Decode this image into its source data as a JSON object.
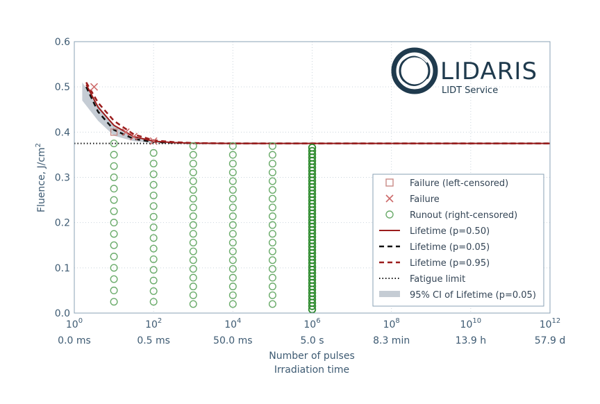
{
  "chart_data": {
    "type": "scatter",
    "xscale": "log10",
    "xlim_exp": [
      0,
      12
    ],
    "ylim": [
      0.0,
      0.6
    ],
    "yticks": [
      "0.0",
      "0.1",
      "0.2",
      "0.3",
      "0.4",
      "0.5",
      "0.6"
    ],
    "ytick_values": [
      0.0,
      0.1,
      0.2,
      0.3,
      0.4,
      0.5,
      0.6
    ],
    "xticks": [
      {
        "base": "10",
        "exp": "0",
        "value_exp": 0,
        "time": "0.0 ms"
      },
      {
        "base": "10",
        "exp": "2",
        "value_exp": 2,
        "time": "0.5 ms"
      },
      {
        "base": "10",
        "exp": "4",
        "value_exp": 4,
        "time": "50.0 ms"
      },
      {
        "base": "10",
        "exp": "6",
        "value_exp": 6,
        "time": "5.0 s"
      },
      {
        "base": "10",
        "exp": "8",
        "value_exp": 8,
        "time": "8.3 min"
      },
      {
        "base": "10",
        "exp": "10",
        "value_exp": 10,
        "time": "13.9 h"
      },
      {
        "base": "10",
        "exp": "12",
        "value_exp": 12,
        "time": "57.9 d"
      }
    ],
    "xlabel_line1": "Number of pulses",
    "xlabel_line2": "Irradiation time",
    "ylabel_main": "Fluence, J/cm",
    "ylabel_sup": "2",
    "grid": true,
    "legend_position": "lower-right",
    "fatigue_limit": 0.375,
    "series": [
      {
        "name": "Failure (left-censored)",
        "marker": "square",
        "color": "#c98a85",
        "points": [
          [
            1.0,
            0.4
          ]
        ]
      },
      {
        "name": "Failure",
        "marker": "x",
        "color": "#cd6b6b",
        "points": [
          [
            0.5,
            0.5
          ],
          [
            1.3,
            0.4
          ],
          [
            1.5,
            0.39
          ],
          [
            2.0,
            0.38
          ]
        ]
      },
      {
        "name": "Runout (right-censored)",
        "marker": "circle",
        "color": "#6aab6a",
        "columns": [
          {
            "x_exp": 1.0,
            "y_start": 0.025,
            "y_step": 0.025,
            "count": 15
          },
          {
            "x_exp": 2.0,
            "y_start": 0.025,
            "y_step": 0.0235,
            "count": 15
          },
          {
            "x_exp": 3.0,
            "y_start": 0.02,
            "y_step": 0.0194,
            "count": 19
          },
          {
            "x_exp": 4.0,
            "y_start": 0.02,
            "y_step": 0.0194,
            "count": 19
          },
          {
            "x_exp": 5.0,
            "y_start": 0.02,
            "y_step": 0.0194,
            "count": 19
          },
          {
            "x_exp": 6.0,
            "y_start": 0.008,
            "y_step": 0.0073,
            "count": 50,
            "highlight": true
          }
        ]
      },
      {
        "name": "Lifetime (p=0.50)",
        "line": "solid",
        "color": "#9b1c1c"
      },
      {
        "name": "Lifetime (p=0.05)",
        "line": "dashed",
        "color": "#111111"
      },
      {
        "name": "Lifetime (p=0.95)",
        "line": "dashed",
        "color": "#9b1c1c"
      },
      {
        "name": "Fatigue limit",
        "line": "dotted",
        "color": "#111111"
      },
      {
        "name": "95% CI of Lifetime (p=0.05)",
        "line": "band",
        "color": "#c5ccd4"
      }
    ],
    "curves": {
      "p50": [
        [
          0.3,
          0.505
        ],
        [
          0.6,
          0.455
        ],
        [
          1.0,
          0.415
        ],
        [
          1.5,
          0.39
        ],
        [
          2.0,
          0.38
        ],
        [
          2.5,
          0.377
        ],
        [
          3.0,
          0.3755
        ],
        [
          4.0,
          0.375
        ],
        [
          12.0,
          0.375
        ]
      ],
      "p05": [
        [
          0.3,
          0.5
        ],
        [
          0.6,
          0.445
        ],
        [
          1.0,
          0.405
        ],
        [
          1.5,
          0.385
        ],
        [
          2.0,
          0.378
        ],
        [
          2.5,
          0.3765
        ],
        [
          3.0,
          0.3755
        ],
        [
          4.0,
          0.375
        ],
        [
          12.0,
          0.375
        ]
      ],
      "p95": [
        [
          0.3,
          0.51
        ],
        [
          0.6,
          0.465
        ],
        [
          1.0,
          0.425
        ],
        [
          1.5,
          0.395
        ],
        [
          2.0,
          0.382
        ],
        [
          2.5,
          0.378
        ],
        [
          3.0,
          0.376
        ],
        [
          4.0,
          0.375
        ],
        [
          12.0,
          0.375
        ]
      ],
      "ci_upper": [
        [
          0.2,
          0.51
        ],
        [
          0.6,
          0.46
        ],
        [
          1.0,
          0.415
        ],
        [
          1.5,
          0.39
        ],
        [
          2.0,
          0.38
        ],
        [
          3.0,
          0.376
        ]
      ],
      "ci_lower": [
        [
          0.2,
          0.47
        ],
        [
          0.6,
          0.425
        ],
        [
          1.0,
          0.392
        ],
        [
          1.5,
          0.38
        ],
        [
          2.0,
          0.376
        ],
        [
          3.0,
          0.375
        ]
      ]
    }
  },
  "logo": {
    "name": "LIDARIS",
    "tagline": "LIDT Service"
  }
}
